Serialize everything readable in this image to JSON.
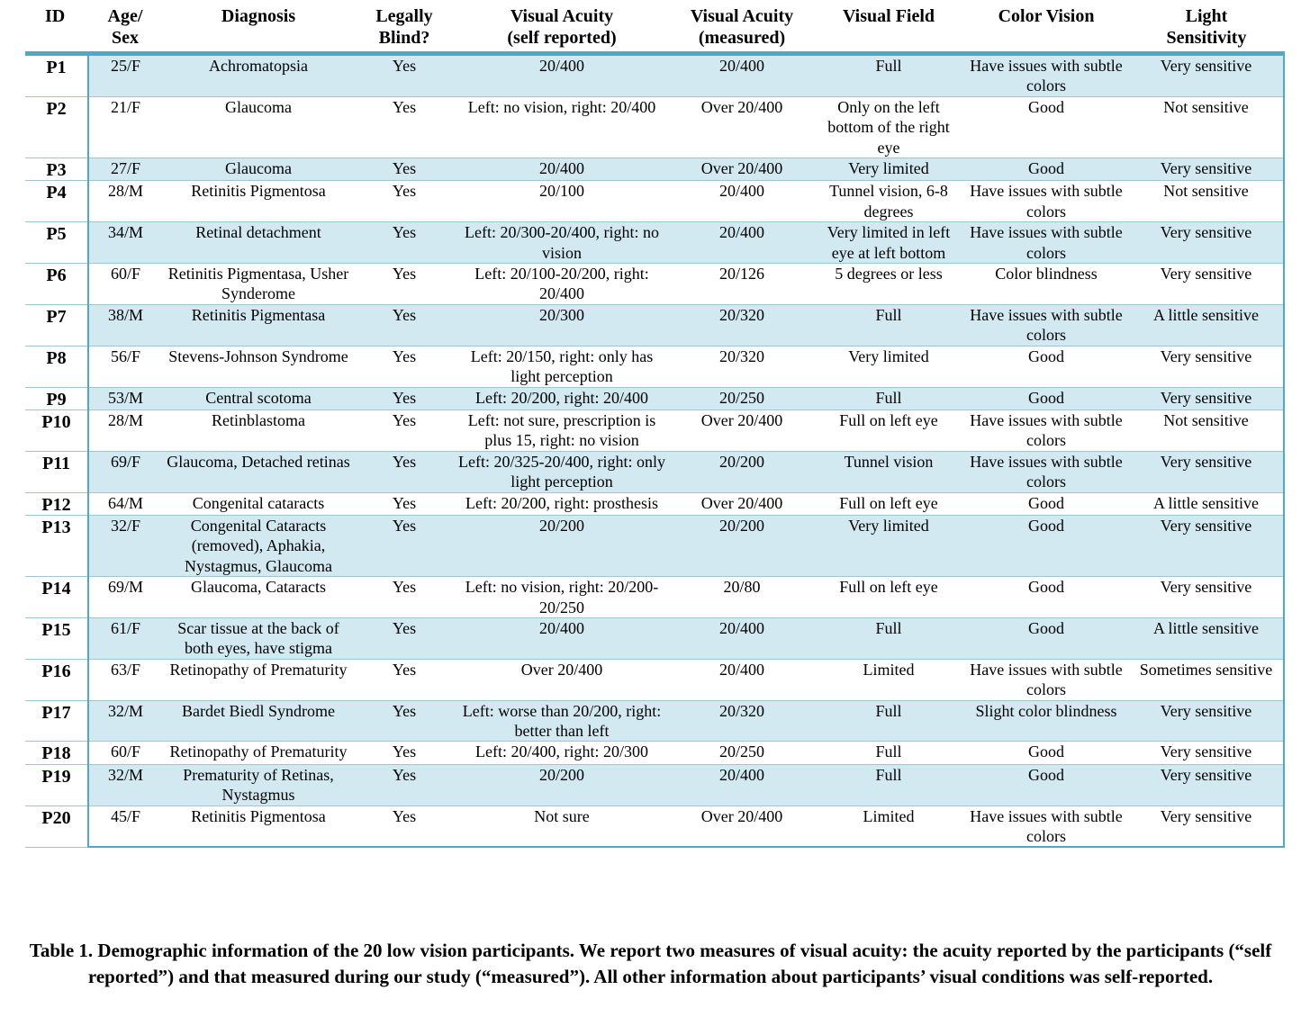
{
  "table": {
    "headers": [
      {
        "l1": "ID",
        "l2": ""
      },
      {
        "l1": "Age/",
        "l2": "Sex"
      },
      {
        "l1": "Diagnosis",
        "l2": ""
      },
      {
        "l1": "Legally",
        "l2": "Blind?"
      },
      {
        "l1": "Visual Acuity",
        "l2": "(self reported)"
      },
      {
        "l1": "Visual Acuity",
        "l2": "(measured)"
      },
      {
        "l1": "Visual Field",
        "l2": ""
      },
      {
        "l1": "Color Vision",
        "l2": ""
      },
      {
        "l1": "Light",
        "l2": "Sensitivity"
      }
    ],
    "rows": [
      {
        "id": "P1",
        "age_sex": "25/F",
        "diagnosis": "Achromatopsia",
        "blind": "Yes",
        "va_self": "20/400",
        "va_measured": "20/400",
        "field": "Full",
        "color": "Have issues with subtle colors",
        "light": "Very sensitive"
      },
      {
        "id": "P2",
        "age_sex": "21/F",
        "diagnosis": "Glaucoma",
        "blind": "Yes",
        "va_self": "Left: no vision, right: 20/400",
        "va_measured": "Over 20/400",
        "field": "Only on the left bottom of the right eye",
        "color": "Good",
        "light": "Not sensitive"
      },
      {
        "id": "P3",
        "age_sex": "27/F",
        "diagnosis": "Glaucoma",
        "blind": "Yes",
        "va_self": "20/400",
        "va_measured": "Over 20/400",
        "field": "Very limited",
        "color": "Good",
        "light": "Very sensitive"
      },
      {
        "id": "P4",
        "age_sex": "28/M",
        "diagnosis": "Retinitis Pigmentosa",
        "blind": "Yes",
        "va_self": "20/100",
        "va_measured": "20/400",
        "field": "Tunnel vision, 6-8 degrees",
        "color": "Have issues with subtle colors",
        "light": "Not sensitive"
      },
      {
        "id": "P5",
        "age_sex": "34/M",
        "diagnosis": "Retinal detachment",
        "blind": "Yes",
        "va_self": "Left: 20/300-20/400, right: no vision",
        "va_measured": "20/400",
        "field": "Very limited in left eye at left bottom",
        "color": "Have issues with subtle colors",
        "light": "Very sensitive"
      },
      {
        "id": "P6",
        "age_sex": "60/F",
        "diagnosis": "Retinitis Pigmentasa, Usher Synderome",
        "blind": "Yes",
        "va_self": "Left: 20/100-20/200, right: 20/400",
        "va_measured": "20/126",
        "field": "5 degrees or less",
        "color": "Color blindness",
        "light": "Very sensitive"
      },
      {
        "id": "P7",
        "age_sex": "38/M",
        "diagnosis": "Retinitis Pigmentasa",
        "blind": "Yes",
        "va_self": "20/300",
        "va_measured": "20/320",
        "field": "Full",
        "color": "Have issues with subtle colors",
        "light": "A little sensitive"
      },
      {
        "id": "P8",
        "age_sex": "56/F",
        "diagnosis": "Stevens-Johnson Syndrome",
        "blind": "Yes",
        "va_self": "Left: 20/150, right: only has light perception",
        "va_measured": "20/320",
        "field": "Very limited",
        "color": "Good",
        "light": "Very sensitive"
      },
      {
        "id": "P9",
        "age_sex": "53/M",
        "diagnosis": "Central scotoma",
        "blind": "Yes",
        "va_self": "Left: 20/200, right: 20/400",
        "va_measured": "20/250",
        "field": "Full",
        "color": "Good",
        "light": "Very sensitive"
      },
      {
        "id": "P10",
        "age_sex": "28/M",
        "diagnosis": "Retinblastoma",
        "blind": "Yes",
        "va_self": "Left: not sure, prescription is plus 15, right: no vision",
        "va_measured": "Over 20/400",
        "field": "Full on left eye",
        "color": "Have issues with subtle colors",
        "light": "Not sensitive"
      },
      {
        "id": "P11",
        "age_sex": "69/F",
        "diagnosis": "Glaucoma, Detached retinas",
        "blind": "Yes",
        "va_self": "Left: 20/325-20/400, right: only light perception",
        "va_measured": "20/200",
        "field": "Tunnel vision",
        "color": "Have issues with subtle colors",
        "light": "Very sensitive"
      },
      {
        "id": "P12",
        "age_sex": "64/M",
        "diagnosis": "Congenital cataracts",
        "blind": "Yes",
        "va_self": "Left: 20/200, right: prosthesis",
        "va_measured": "Over 20/400",
        "field": "Full on left eye",
        "color": "Good",
        "light": "A little sensitive"
      },
      {
        "id": "P13",
        "age_sex": "32/F",
        "diagnosis": "Congenital Cataracts (removed), Aphakia, Nystagmus, Glaucoma",
        "blind": "Yes",
        "va_self": "20/200",
        "va_measured": "20/200",
        "field": "Very limited",
        "color": "Good",
        "light": "Very sensitive"
      },
      {
        "id": "P14",
        "age_sex": "69/M",
        "diagnosis": "Glaucoma, Cataracts",
        "blind": "Yes",
        "va_self": "Left: no vision, right: 20/200-20/250",
        "va_measured": "20/80",
        "field": "Full on left eye",
        "color": "Good",
        "light": "Very sensitive"
      },
      {
        "id": "P15",
        "age_sex": "61/F",
        "diagnosis": "Scar tissue at the back of both eyes, have stigma",
        "blind": "Yes",
        "va_self": "20/400",
        "va_measured": "20/400",
        "field": "Full",
        "color": "Good",
        "light": "A little sensitive"
      },
      {
        "id": "P16",
        "age_sex": "63/F",
        "diagnosis": "Retinopathy of Prematurity",
        "blind": "Yes",
        "va_self": "Over 20/400",
        "va_measured": "20/400",
        "field": "Limited",
        "color": "Have issues with subtle colors",
        "light": "Sometimes sensitive"
      },
      {
        "id": "P17",
        "age_sex": "32/M",
        "diagnosis": "Bardet Biedl Syndrome",
        "blind": "Yes",
        "va_self": "Left: worse than 20/200, right: better than left",
        "va_measured": "20/320",
        "field": "Full",
        "color": "Slight color blindness",
        "light": "Very sensitive"
      },
      {
        "id": "P18",
        "age_sex": "60/F",
        "diagnosis": "Retinopathy of Prematurity",
        "blind": "Yes",
        "va_self": "Left: 20/400, right: 20/300",
        "va_measured": "20/250",
        "field": "Full",
        "color": "Good",
        "light": "Very sensitive"
      },
      {
        "id": "P19",
        "age_sex": "32/M",
        "diagnosis": "Prematurity of Retinas, Nystagmus",
        "blind": "Yes",
        "va_self": "20/200",
        "va_measured": "20/400",
        "field": "Full",
        "color": "Good",
        "light": "Very sensitive"
      },
      {
        "id": "P20",
        "age_sex": "45/F",
        "diagnosis": "Retinitis Pigmentosa",
        "blind": "Yes",
        "va_self": "Not sure",
        "va_measured": "Over 20/400",
        "field": "Limited",
        "color": "Have issues with subtle colors",
        "light": "Very sensitive"
      }
    ]
  },
  "caption": "Table 1. Demographic information of the 20 low vision participants. We report two measures of visual acuity: the acuity reported by the participants (“self reported”) and that measured during our study (“measured”). All other information about participants’ visual conditions was self-reported.",
  "colors": {
    "accent": "#4fa8c6",
    "row_shade": "#d2e9f1"
  }
}
